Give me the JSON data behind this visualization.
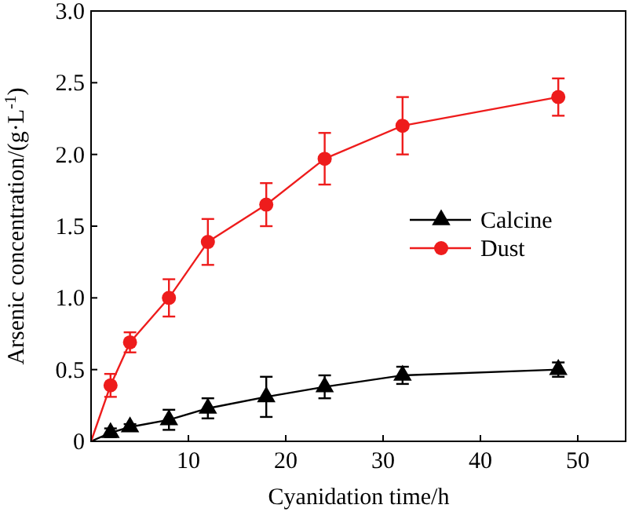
{
  "chart_data": {
    "type": "line",
    "xlabel": "Cyanidation time/h",
    "ylabel": "Arsenic concentration/(g·L$^{-1}$)",
    "xlim": [
      0,
      55
    ],
    "ylim": [
      0,
      3
    ],
    "xticks": [
      {
        "value": 0,
        "label": null
      },
      10,
      20,
      30,
      40,
      50
    ],
    "yticks": [
      0,
      0.5,
      {
        "value": 1,
        "label": "1.0"
      },
      1.5,
      {
        "value": 2,
        "label": "2.0"
      },
      2.5,
      {
        "value": 3,
        "label": "3.0"
      }
    ],
    "x": [
      0,
      2,
      4,
      8,
      12,
      18,
      24,
      32,
      48
    ],
    "legend": "right",
    "grid": false,
    "line_style": "solid",
    "series": [
      {
        "name": "Calcine",
        "color": "#000000",
        "marker": "triangle",
        "values": [
          0,
          0.06,
          0.1,
          0.15,
          0.23,
          0.31,
          0.38,
          0.46,
          0.5
        ],
        "errors": [
          null,
          0.03,
          0.02,
          0.07,
          0.07,
          0.14,
          0.08,
          0.06,
          0.05
        ]
      },
      {
        "name": "Dust",
        "color": "#ee1c1c",
        "marker": "circle",
        "values": [
          0,
          0.39,
          0.69,
          1.0,
          1.39,
          1.65,
          1.97,
          2.2,
          2.4
        ],
        "errors": [
          null,
          0.08,
          0.07,
          0.13,
          0.16,
          0.15,
          0.18,
          0.2,
          0.13
        ]
      }
    ]
  }
}
